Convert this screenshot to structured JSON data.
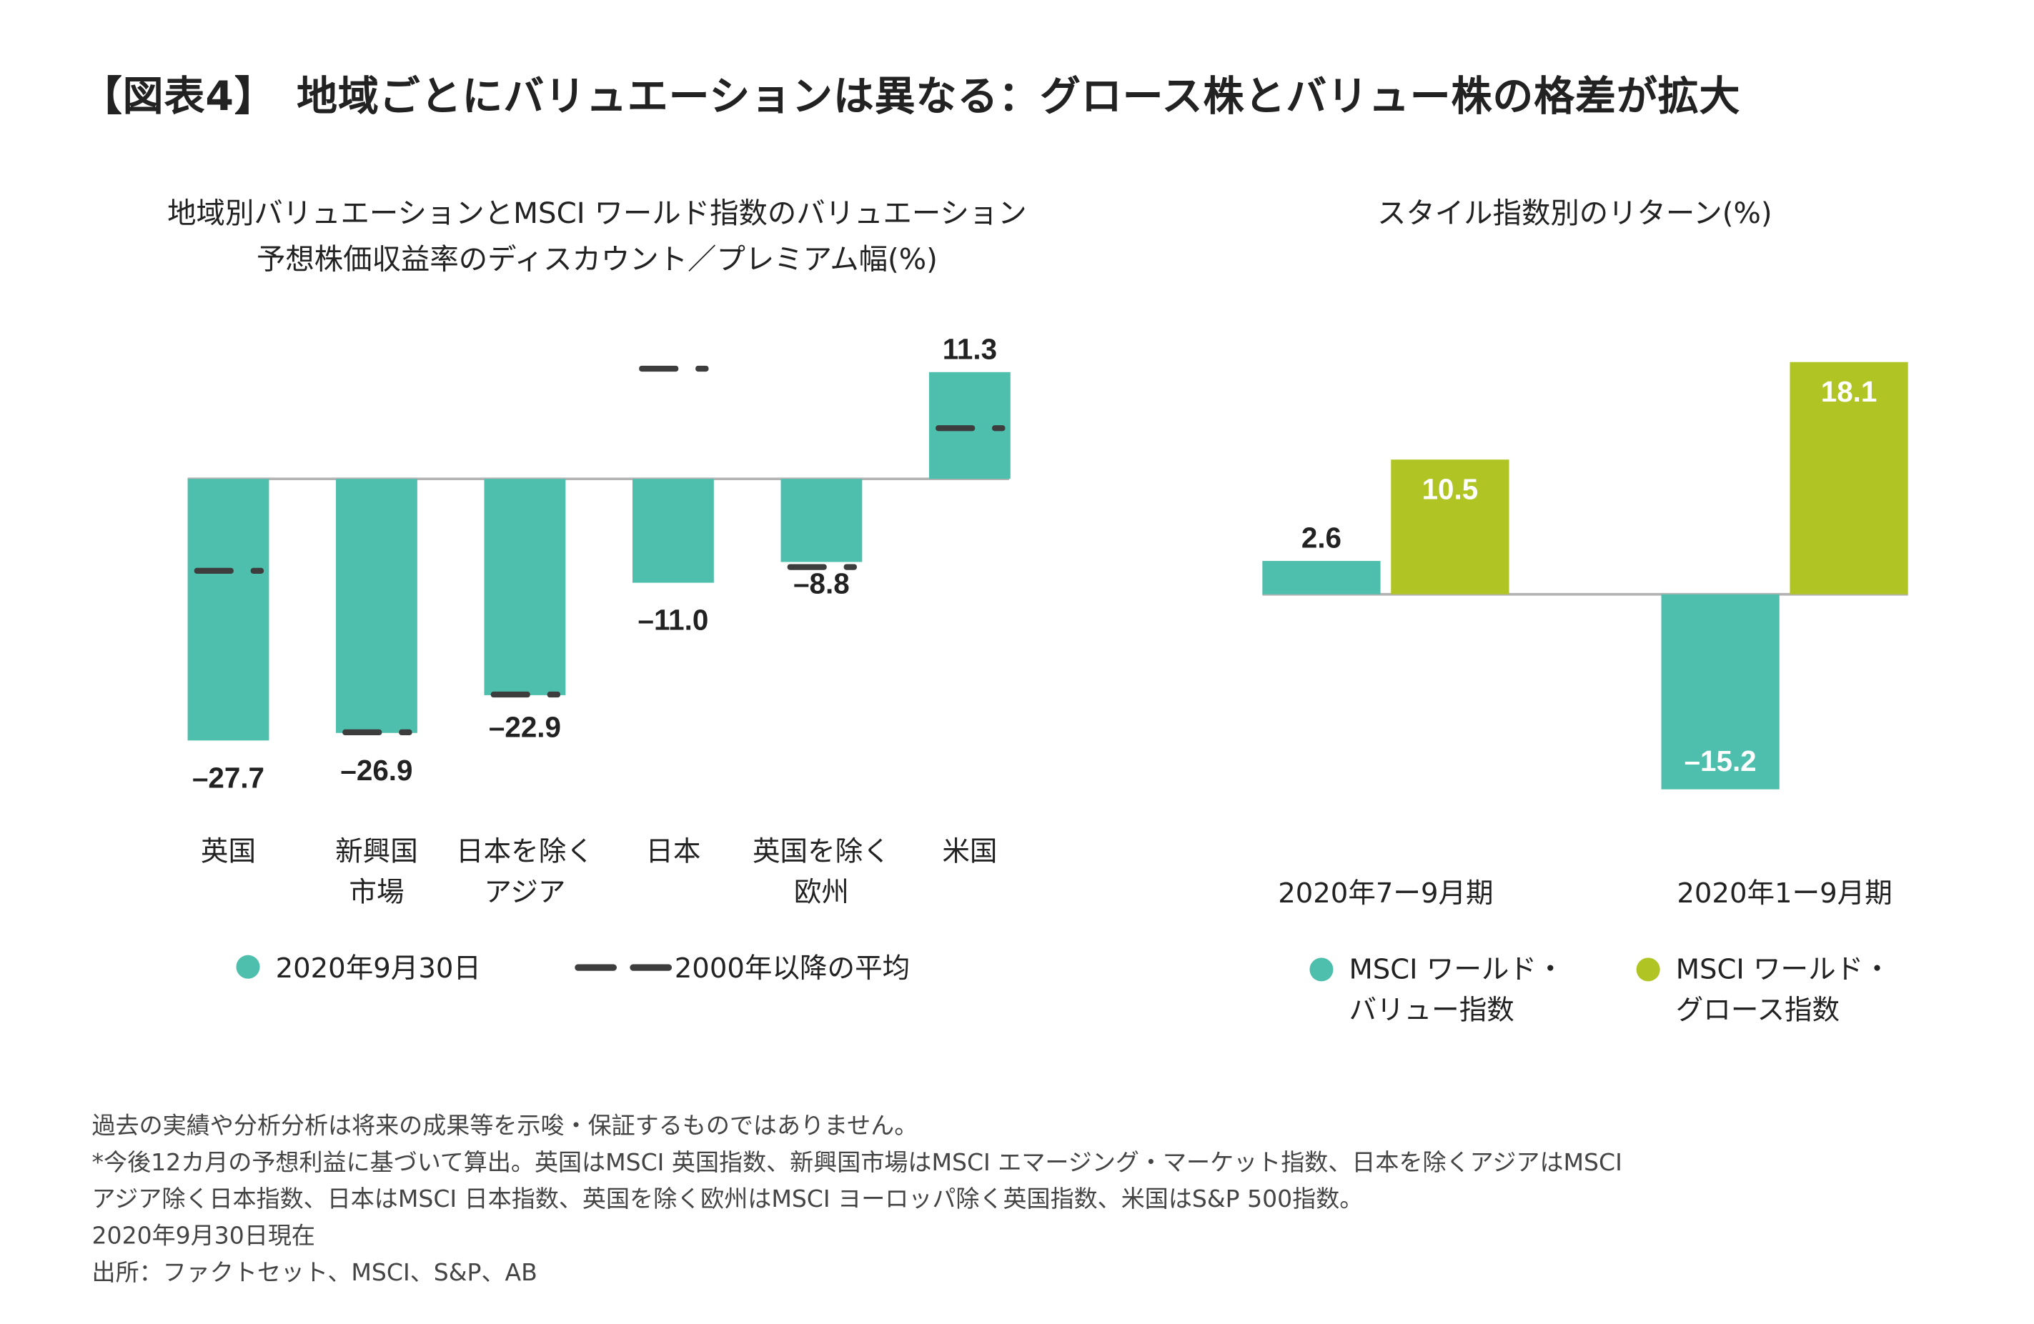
{
  "title": "【図表4】　地域ごとにバリュエーションは異なる：グロース株とバリュー株の格差が拡大",
  "colors": {
    "teal": "#4fbfad",
    "lime": "#b0c424",
    "avg_marker": "#3d3d3d",
    "zero_line": "#b3b3b3"
  },
  "chart_data": [
    {
      "type": "bar",
      "title_lines": [
        "地域別バリュエーションとMSCI ワールド指数のバリュエーション",
        "予想株価収益率のディスカウント／プレミアム幅(%)"
      ],
      "categories": [
        [
          "英国"
        ],
        [
          "新興国",
          "市場"
        ],
        [
          "日本を除く",
          "アジア"
        ],
        [
          "日本"
        ],
        [
          "英国を除く",
          "欧州"
        ],
        [
          "米国"
        ]
      ],
      "series": [
        {
          "name": "2020年9月30日",
          "kind": "bar",
          "values": [
            -27.7,
            -26.9,
            -22.9,
            -11.0,
            -8.8,
            11.3
          ],
          "labels": [
            "–27.7",
            "–26.9",
            "–22.9",
            "–11.0",
            "–8.8",
            "11.3"
          ]
        },
        {
          "name": "2000年以降の平均",
          "kind": "dash-marker",
          "values": [
            -9.7,
            -26.8,
            -22.8,
            11.7,
            -9.3,
            5.4
          ]
        }
      ],
      "ylim": [
        -30,
        13
      ],
      "grid": false,
      "legend": "bottom"
    },
    {
      "type": "bar",
      "title": "スタイル指数別のリターン(%)",
      "categories": [
        "2020年7ー9月期",
        "2020年1ー9月期"
      ],
      "series": [
        {
          "name": "MSCI ワールド・バリュー指数",
          "legend_lines": [
            "MSCI ワールド・",
            "バリュー指数"
          ],
          "values": [
            2.6,
            -15.2
          ],
          "labels": [
            "2.6",
            "–15.2"
          ]
        },
        {
          "name": "MSCI ワールド・グロース指数",
          "legend_lines": [
            "MSCI ワールド・",
            "グロース指数"
          ],
          "values": [
            10.5,
            18.1
          ],
          "labels": [
            "10.5",
            "18.1"
          ]
        }
      ],
      "ylim": [
        -16,
        19
      ],
      "grid": false,
      "legend": "bottom"
    }
  ],
  "footnotes": [
    "過去の実績や分析分析は将来の成果等を示唆・保証するものではありません。",
    "*今後12カ月の予想利益に基づいて算出。英国はMSCI 英国指数、新興国市場はMSCI エマージング・マーケット指数、日本を除くアジアはMSCI",
    "アジア除く日本指数、日本はMSCI 日本指数、英国を除く欧州はMSCI ヨーロッパ除く英国指数、米国はS&P 500指数。",
    "2020年9月30日現在",
    "出所：ファクトセット、MSCI、S&P、AB"
  ]
}
